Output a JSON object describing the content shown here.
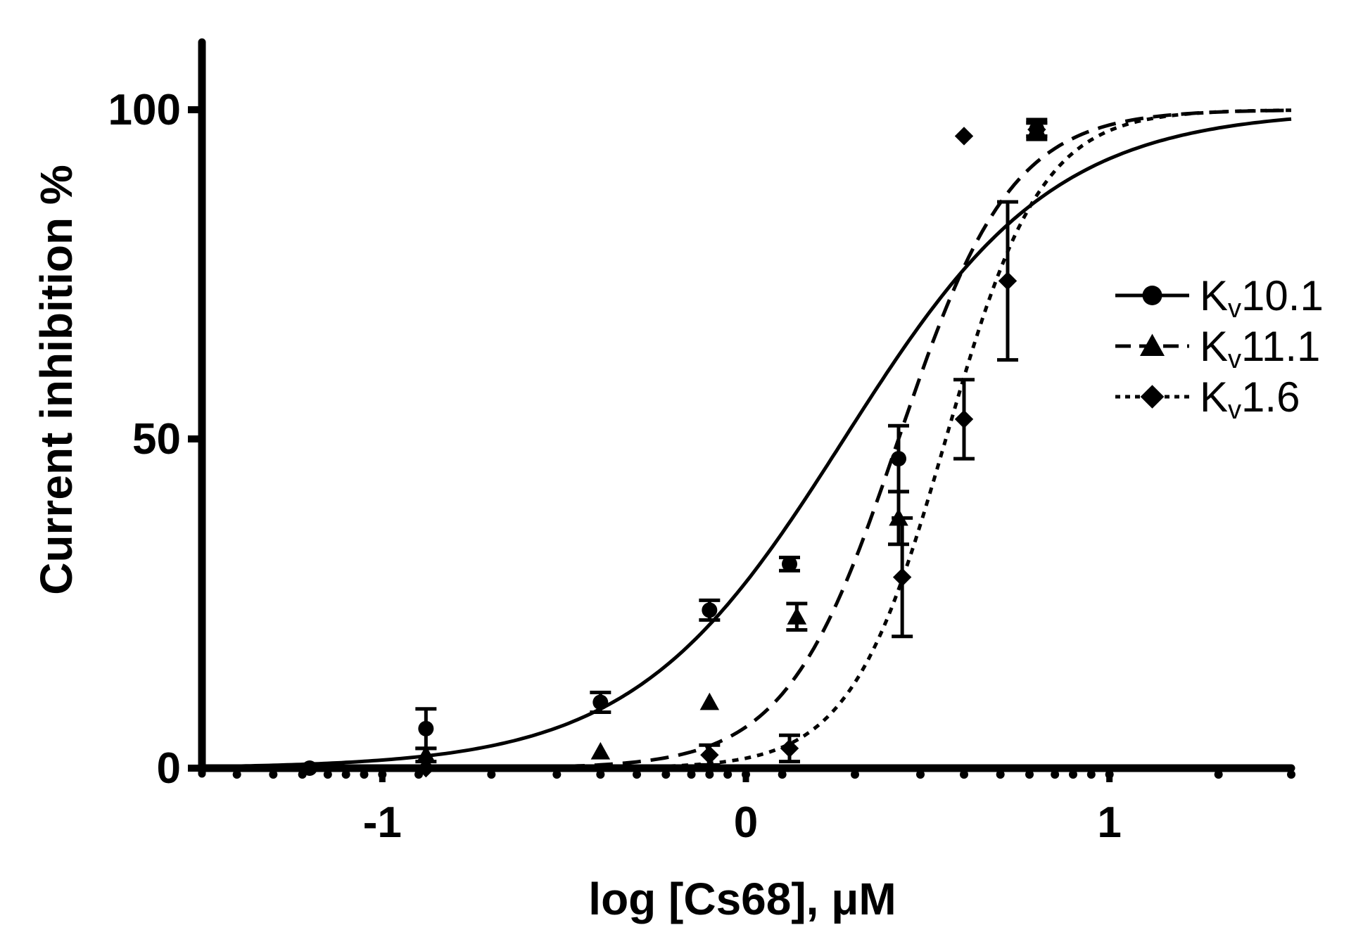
{
  "chart_data": {
    "type": "scatter",
    "xlabel": "log [Cs68], μM",
    "ylabel": "Current inhibition %",
    "xlim": [
      -1.5,
      1.5
    ],
    "ylim": [
      0,
      110
    ],
    "x_ticks": [
      {
        "value": -1,
        "label": "-1"
      },
      {
        "value": 0,
        "label": "0"
      },
      {
        "value": 1,
        "label": "1"
      }
    ],
    "y_ticks": [
      {
        "value": 0,
        "label": "0"
      },
      {
        "value": 50,
        "label": "50"
      },
      {
        "value": 100,
        "label": "100"
      }
    ],
    "x_minor_ticks": [
      -1.4,
      -1.3,
      -1.22,
      -1.15,
      -1.1,
      -1.05,
      -1.0,
      -0.9,
      -0.7,
      -0.52,
      -0.4,
      -0.3,
      -0.22,
      -0.15,
      -0.1,
      -0.05,
      0,
      0.1,
      0.3,
      0.48,
      0.6,
      0.7,
      0.78,
      0.85,
      0.9,
      0.95,
      1.0,
      1.3,
      1.5
    ],
    "legend_position": "right",
    "grid": false,
    "series": [
      {
        "name": "Kv10.1",
        "name_main": "K",
        "name_sub": "v",
        "name_rest": "10.1",
        "marker": "circle",
        "line_style": "solid",
        "fit": {
          "logIC50": 0.27,
          "hill": 1.5
        },
        "points": [
          {
            "x": -1.2,
            "y": 0,
            "err": 0
          },
          {
            "x": -0.88,
            "y": 6,
            "err": 3
          },
          {
            "x": -0.4,
            "y": 10,
            "err": 1.5
          },
          {
            "x": -0.1,
            "y": 24,
            "err": 1.5
          },
          {
            "x": 0.12,
            "y": 31,
            "err": 1
          },
          {
            "x": 0.42,
            "y": 47,
            "err": 5
          },
          {
            "x": 0.8,
            "y": 97,
            "err": 1.5
          }
        ]
      },
      {
        "name": "Kv11.1",
        "name_main": "K",
        "name_sub": "v",
        "name_rest": "11.1",
        "marker": "triangle",
        "line_style": "dashed",
        "fit": {
          "logIC50": 0.42,
          "hill": 2.8
        },
        "points": [
          {
            "x": -0.88,
            "y": 2,
            "err": 1
          },
          {
            "x": -0.4,
            "y": 2.5,
            "err": 0
          },
          {
            "x": -0.1,
            "y": 10,
            "err": 0
          },
          {
            "x": 0.14,
            "y": 23,
            "err": 2
          },
          {
            "x": 0.42,
            "y": 38,
            "err": 4
          },
          {
            "x": 0.8,
            "y": 97,
            "err": 1
          }
        ]
      },
      {
        "name": "Kv1.6",
        "name_main": "K",
        "name_sub": "v",
        "name_rest": "1.6",
        "marker": "diamond",
        "line_style": "dotted",
        "fit": {
          "logIC50": 0.55,
          "hill": 3.3
        },
        "points": [
          {
            "x": -0.88,
            "y": 0,
            "err": 0
          },
          {
            "x": -0.1,
            "y": 2,
            "err": 1.5
          },
          {
            "x": 0.12,
            "y": 3,
            "err": 2
          },
          {
            "x": 0.43,
            "y": 29,
            "err": 9
          },
          {
            "x": 0.6,
            "y": 53,
            "err": 6
          },
          {
            "x": 0.6,
            "y": 96,
            "err": 0
          },
          {
            "x": 0.72,
            "y": 74,
            "err": 12
          },
          {
            "x": 0.8,
            "y": 97,
            "err": 1
          }
        ]
      }
    ]
  }
}
